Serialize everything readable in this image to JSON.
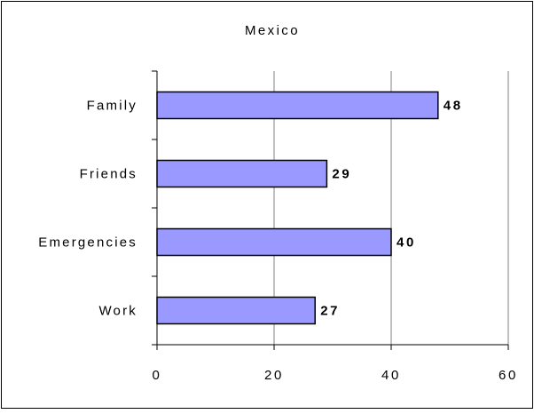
{
  "chart_data": {
    "type": "bar",
    "orientation": "horizontal",
    "title": "Mexico",
    "xlabel": "",
    "ylabel": "",
    "categories": [
      "Family",
      "Friends",
      "Emergencies",
      "Work"
    ],
    "values": [
      48,
      29,
      40,
      27
    ],
    "data_labels": [
      "48",
      "29",
      "40",
      "27"
    ],
    "xlim": [
      0,
      60
    ],
    "xticks": [
      "0",
      "20",
      "40",
      "60"
    ],
    "grid": "vertical",
    "legend": "none",
    "colors": {
      "bar_fill": "#9999ff",
      "bar_stroke": "#000000",
      "grid": "#808080",
      "axis": "#000000",
      "frame": "#000000",
      "background": "#ffffff"
    }
  }
}
